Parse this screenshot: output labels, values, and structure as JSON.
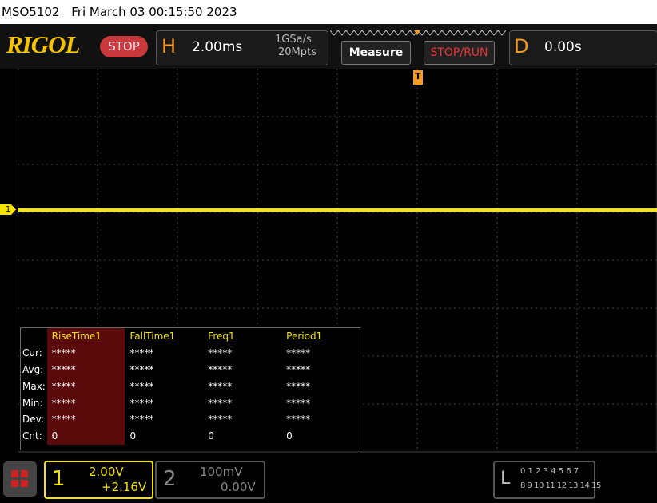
{
  "status_bar": {
    "model": "MSO5102",
    "datetime": "Fri March 03 00:15:50 2023"
  },
  "toolbar": {
    "logo": "RIGOL",
    "run_state": "STOP",
    "horizontal": {
      "label": "H",
      "timebase": "2.00ms",
      "sample_rate": "1GSa/s",
      "memory_depth": "20Mpts"
    },
    "buttons": [
      "Measure",
      "STOP/RUN"
    ],
    "delay": {
      "label": "D",
      "value": "0.00s"
    }
  },
  "trigger_marker": "T",
  "channel_marker": "1",
  "measure_table": {
    "columns": [
      "RiseTime1",
      "FallTime1",
      "Freq1",
      "Period1"
    ],
    "rows": [
      {
        "label": "Cur:",
        "values": [
          "*****",
          "*****",
          "*****",
          "*****"
        ]
      },
      {
        "label": "Avg:",
        "values": [
          "*****",
          "*****",
          "*****",
          "*****"
        ]
      },
      {
        "label": "Max:",
        "values": [
          "*****",
          "*****",
          "*****",
          "*****"
        ]
      },
      {
        "label": "Min:",
        "values": [
          "*****",
          "*****",
          "*****",
          "*****"
        ]
      },
      {
        "label": "Dev:",
        "values": [
          "*****",
          "*****",
          "*****",
          "*****"
        ]
      },
      {
        "label": "Cnt:",
        "values": [
          "0",
          "0",
          "0",
          "0"
        ]
      }
    ]
  },
  "channels": [
    {
      "number": "1",
      "scale": "2.00V",
      "offset": "+2.16V"
    },
    {
      "number": "2",
      "scale": "100mV",
      "offset": "0.00V"
    }
  ],
  "logic": {
    "label": "L",
    "row1": "0 1 2 3  4 5 6 7",
    "row2": "8 9 10 11 12 13 14 15"
  }
}
